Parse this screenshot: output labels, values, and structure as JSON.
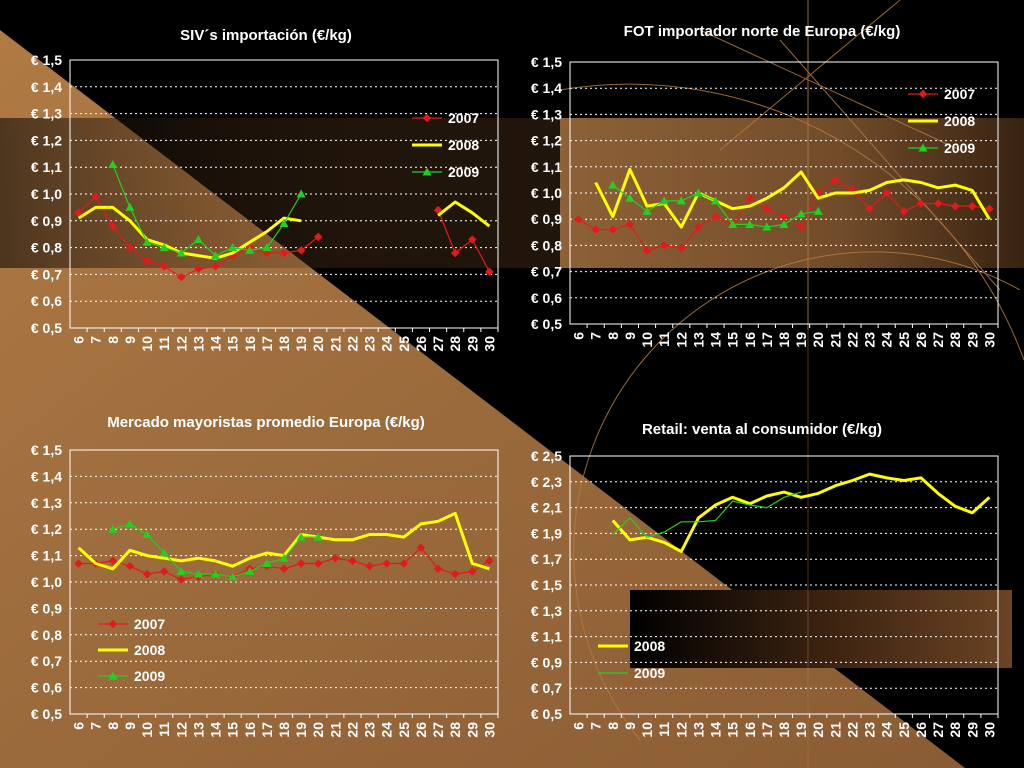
{
  "colors": {
    "series_2007": "#e31a1c",
    "series_2008": "#ffff00",
    "series_2009": "#22d022",
    "background": "#000000",
    "tan": "#9a6a3c",
    "grid": "#ffffff"
  },
  "chart_data": [
    {
      "type": "line",
      "title": "SIV´s importación (€/kg)",
      "x": [
        6,
        7,
        8,
        9,
        10,
        11,
        12,
        13,
        14,
        15,
        16,
        17,
        18,
        19,
        20,
        21,
        22,
        23,
        24,
        25,
        26,
        27,
        28,
        29,
        30
      ],
      "xlabel": "",
      "ylabel": "",
      "ylim": [
        0.5,
        1.5
      ],
      "y_ticks": [
        "€ 1,5",
        "€ 1,4",
        "€ 1,3",
        "€ 1,2",
        "€ 1,1",
        "€ 1,0",
        "€ 0,9",
        "€ 0,8",
        "€ 0,7",
        "€ 0,6",
        "€ 0,5"
      ],
      "legend_position": "right",
      "series": [
        {
          "name": "2007",
          "values": [
            0.93,
            0.99,
            0.88,
            0.8,
            0.75,
            0.73,
            0.69,
            0.72,
            0.73,
            0.77,
            0.8,
            0.78,
            0.78,
            0.79,
            0.84,
            null,
            null,
            null,
            null,
            null,
            null,
            0.94,
            0.78,
            0.83,
            0.71
          ]
        },
        {
          "name": "2008",
          "values": [
            0.91,
            0.95,
            0.95,
            0.9,
            0.83,
            0.81,
            0.78,
            0.77,
            0.76,
            0.78,
            0.82,
            0.86,
            0.91,
            0.9,
            null,
            null,
            null,
            null,
            null,
            null,
            null,
            0.92,
            0.97,
            0.93,
            0.88
          ]
        },
        {
          "name": "2009",
          "values": [
            null,
            null,
            1.11,
            0.95,
            0.82,
            0.8,
            0.78,
            0.83,
            0.77,
            0.8,
            0.79,
            0.8,
            0.89,
            1.0,
            null,
            null,
            null,
            null,
            null,
            null,
            null,
            null,
            null,
            null,
            null
          ]
        }
      ]
    },
    {
      "type": "line",
      "title": "FOT importador norte de Europa (€/kg)",
      "x": [
        6,
        7,
        8,
        9,
        10,
        11,
        12,
        13,
        14,
        15,
        16,
        17,
        18,
        19,
        20,
        21,
        22,
        23,
        24,
        25,
        26,
        27,
        28,
        29,
        30
      ],
      "xlabel": "",
      "ylabel": "",
      "ylim": [
        0.5,
        1.5
      ],
      "y_ticks": [
        "€ 1,5",
        "€ 1,4",
        "€ 1,3",
        "€ 1,2",
        "€ 1,1",
        "€ 1,0",
        "€ 0,9",
        "€ 0,8",
        "€ 0,7",
        "€ 0,6",
        "€ 0,5"
      ],
      "legend_position": "top-right",
      "series": [
        {
          "name": "2007",
          "values": [
            0.9,
            0.86,
            0.86,
            0.88,
            0.78,
            0.8,
            0.79,
            0.87,
            0.91,
            0.88,
            0.98,
            0.94,
            0.91,
            0.87,
            1.0,
            1.05,
            1.01,
            0.94,
            1.0,
            0.93,
            0.96,
            0.96,
            0.95,
            0.95,
            0.94
          ]
        },
        {
          "name": "2008",
          "values": [
            null,
            1.04,
            0.91,
            1.09,
            0.95,
            0.96,
            0.87,
            1.0,
            0.97,
            0.94,
            0.95,
            0.98,
            1.02,
            1.08,
            0.98,
            1.0,
            1.0,
            1.01,
            1.04,
            1.05,
            1.04,
            1.02,
            1.03,
            1.01,
            0.9
          ]
        },
        {
          "name": "2009",
          "values": [
            null,
            null,
            1.03,
            0.98,
            0.93,
            0.97,
            0.97,
            1.0,
            0.97,
            0.88,
            0.88,
            0.87,
            0.88,
            0.92,
            0.93,
            null,
            null,
            null,
            null,
            null,
            null,
            null,
            null,
            null,
            null
          ]
        }
      ]
    },
    {
      "type": "line",
      "title": "Mercado mayoristas promedio Europa (€/kg)",
      "x": [
        6,
        7,
        8,
        9,
        10,
        11,
        12,
        13,
        14,
        15,
        16,
        17,
        18,
        19,
        20,
        21,
        22,
        23,
        24,
        25,
        26,
        27,
        28,
        29,
        30
      ],
      "xlabel": "",
      "ylabel": "",
      "ylim": [
        0.5,
        1.5
      ],
      "y_ticks": [
        "€ 1,5",
        "€ 1,4",
        "€ 1,3",
        "€ 1,2",
        "€ 1,1",
        "€ 1,0",
        "€ 0,9",
        "€ 0,8",
        "€ 0,7",
        "€ 0,6",
        "€ 0,5"
      ],
      "legend_position": "bottom-left",
      "series": [
        {
          "name": "2007",
          "values": [
            1.07,
            1.07,
            1.08,
            1.06,
            1.03,
            1.04,
            1.01,
            1.02,
            1.03,
            1.02,
            1.05,
            1.06,
            1.05,
            1.07,
            1.07,
            1.09,
            1.08,
            1.06,
            1.07,
            1.07,
            1.13,
            1.05,
            1.03,
            1.04,
            1.08
          ]
        },
        {
          "name": "2008",
          "values": [
            1.13,
            1.07,
            1.05,
            1.12,
            1.1,
            1.09,
            1.08,
            1.09,
            1.08,
            1.06,
            1.09,
            1.11,
            1.1,
            1.18,
            1.17,
            1.16,
            1.16,
            1.18,
            1.18,
            1.17,
            1.22,
            1.23,
            1.26,
            1.07,
            1.05
          ]
        },
        {
          "name": "2009",
          "values": [
            null,
            null,
            1.2,
            1.22,
            1.18,
            1.11,
            1.04,
            1.03,
            1.03,
            1.02,
            1.04,
            1.07,
            1.09,
            1.17,
            1.17,
            null,
            null,
            null,
            null,
            null,
            null,
            null,
            null,
            null,
            null
          ]
        }
      ]
    },
    {
      "type": "line",
      "title": "Retail:  venta al consumidor (€/kg)",
      "x": [
        6,
        7,
        8,
        9,
        10,
        11,
        12,
        13,
        14,
        15,
        16,
        17,
        18,
        19,
        20,
        21,
        22,
        23,
        24,
        25,
        26,
        27,
        28,
        29,
        30
      ],
      "xlabel": "",
      "ylabel": "",
      "ylim": [
        0.5,
        2.5
      ],
      "y_ticks": [
        "€ 2,5",
        "€ 2,3",
        "€ 2,1",
        "€ 1,9",
        "€ 1,7",
        "€ 1,5",
        "€ 1,3",
        "€ 1,1",
        "€ 0,9",
        "€ 0,7",
        "€ 0,5"
      ],
      "legend_position": "bottom-left",
      "series": [
        {
          "name": "2008",
          "values": [
            null,
            null,
            2.0,
            1.85,
            1.87,
            1.83,
            1.76,
            2.02,
            2.12,
            2.18,
            2.13,
            2.19,
            2.22,
            2.18,
            2.21,
            2.27,
            2.31,
            2.36,
            2.33,
            2.31,
            2.33,
            2.21,
            2.11,
            2.06,
            2.18
          ]
        },
        {
          "name": "2009",
          "values": [
            null,
            null,
            1.89,
            2.02,
            1.87,
            1.91,
            1.99,
            1.99,
            2.0,
            2.15,
            2.12,
            2.1,
            2.18,
            2.22,
            null,
            null,
            null,
            null,
            null,
            null,
            null,
            null,
            null,
            null,
            null
          ]
        }
      ]
    }
  ]
}
